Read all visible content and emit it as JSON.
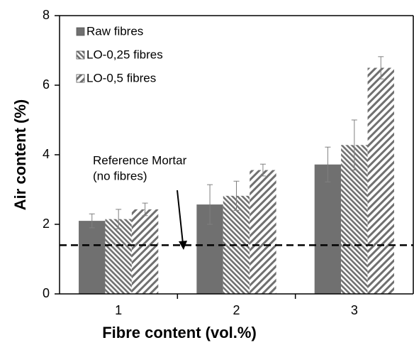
{
  "chart_data": {
    "type": "bar",
    "x_label": "Fibre content (vol.%)",
    "y_label": "Air content (%)",
    "categories": [
      "1",
      "2",
      "3"
    ],
    "series": [
      {
        "name": "Raw fibres",
        "color": "#707070",
        "pattern": "solid",
        "values": [
          2.1,
          2.57,
          3.72
        ],
        "errors": [
          0.2,
          0.57,
          0.5
        ]
      },
      {
        "name": "LO-0,25 fibres",
        "color": "#707070",
        "pattern": "backslash",
        "values": [
          2.15,
          2.82,
          4.28
        ],
        "errors": [
          0.28,
          0.42,
          0.72
        ]
      },
      {
        "name": "LO-0,5 fibres",
        "color": "#707070",
        "pattern": "slash",
        "values": [
          2.43,
          3.56,
          6.5
        ],
        "errors": [
          0.18,
          0.17,
          0.32
        ]
      }
    ],
    "ylim": [
      0,
      8
    ],
    "yticks": [
      0,
      2,
      4,
      6,
      8
    ],
    "reference_line": {
      "value": 1.4,
      "label": [
        "Reference Mortar",
        "(no fibres)"
      ]
    },
    "legend": "top-left"
  }
}
